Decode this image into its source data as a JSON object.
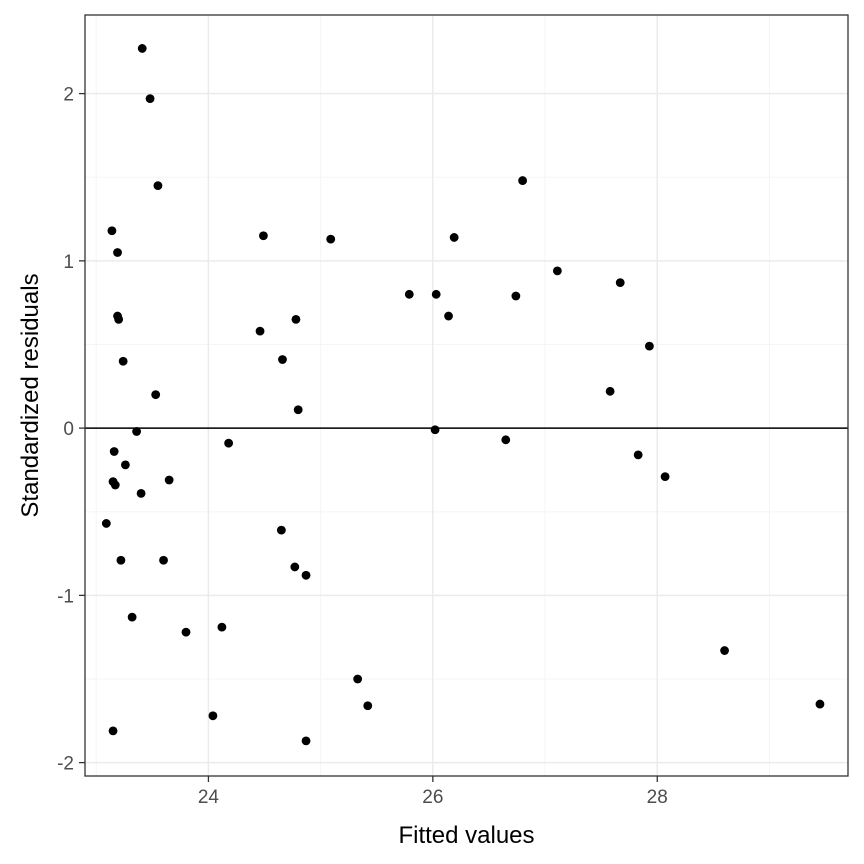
{
  "chart_data": {
    "type": "scatter",
    "title": "",
    "xlabel": "Fitted values",
    "ylabel": "Standardized residuals",
    "xlim": [
      22.9,
      29.7
    ],
    "ylim": [
      -2.08,
      2.47
    ],
    "x_ticks": [
      24,
      26,
      28
    ],
    "x_tick_labels": [
      "24",
      "26",
      "28"
    ],
    "y_ticks": [
      -2,
      -1,
      0,
      1,
      2
    ],
    "y_tick_labels": [
      "-2",
      "-1",
      "0",
      "1",
      "2"
    ],
    "grid": true,
    "reference_line_y": 0,
    "theme_colors": {
      "point": "#000000",
      "grid_major": "#ebebeb",
      "grid_minor": "#f5f5f5",
      "panel_border": "#333333",
      "reference_line": "#000000"
    },
    "points": [
      {
        "x": 23.41,
        "y": 2.27
      },
      {
        "x": 23.48,
        "y": 1.97
      },
      {
        "x": 23.55,
        "y": 1.45
      },
      {
        "x": 23.14,
        "y": 1.18
      },
      {
        "x": 23.19,
        "y": 1.05
      },
      {
        "x": 23.19,
        "y": 0.67
      },
      {
        "x": 23.2,
        "y": 0.65
      },
      {
        "x": 23.24,
        "y": 0.4
      },
      {
        "x": 23.53,
        "y": 0.2
      },
      {
        "x": 23.36,
        "y": -0.02
      },
      {
        "x": 23.16,
        "y": -0.14
      },
      {
        "x": 23.26,
        "y": -0.22
      },
      {
        "x": 23.15,
        "y": -0.32
      },
      {
        "x": 23.17,
        "y": -0.34
      },
      {
        "x": 23.4,
        "y": -0.39
      },
      {
        "x": 23.65,
        "y": -0.31
      },
      {
        "x": 23.09,
        "y": -0.57
      },
      {
        "x": 23.22,
        "y": -0.79
      },
      {
        "x": 23.6,
        "y": -0.79
      },
      {
        "x": 23.32,
        "y": -1.13
      },
      {
        "x": 23.8,
        "y": -1.22
      },
      {
        "x": 23.15,
        "y": -1.81
      },
      {
        "x": 24.04,
        "y": -1.72
      },
      {
        "x": 24.12,
        "y": -1.19
      },
      {
        "x": 24.18,
        "y": -0.09
      },
      {
        "x": 24.46,
        "y": 0.58
      },
      {
        "x": 24.49,
        "y": 1.15
      },
      {
        "x": 24.66,
        "y": 0.41
      },
      {
        "x": 24.78,
        "y": 0.65
      },
      {
        "x": 24.8,
        "y": 0.11
      },
      {
        "x": 24.65,
        "y": -0.61
      },
      {
        "x": 24.77,
        "y": -0.83
      },
      {
        "x": 24.87,
        "y": -0.88
      },
      {
        "x": 24.87,
        "y": -1.87
      },
      {
        "x": 25.09,
        "y": 1.13
      },
      {
        "x": 25.33,
        "y": -1.5
      },
      {
        "x": 25.42,
        "y": -1.66
      },
      {
        "x": 25.79,
        "y": 0.8
      },
      {
        "x": 26.03,
        "y": 0.8
      },
      {
        "x": 26.14,
        "y": 0.67
      },
      {
        "x": 26.19,
        "y": 1.14
      },
      {
        "x": 26.02,
        "y": -0.01
      },
      {
        "x": 26.65,
        "y": -0.07
      },
      {
        "x": 26.74,
        "y": 0.79
      },
      {
        "x": 26.8,
        "y": 1.48
      },
      {
        "x": 27.11,
        "y": 0.94
      },
      {
        "x": 27.58,
        "y": 0.22
      },
      {
        "x": 27.67,
        "y": 0.87
      },
      {
        "x": 27.83,
        "y": -0.16
      },
      {
        "x": 27.93,
        "y": 0.49
      },
      {
        "x": 28.07,
        "y": -0.29
      },
      {
        "x": 28.6,
        "y": -1.33
      },
      {
        "x": 29.45,
        "y": -1.65
      }
    ]
  }
}
